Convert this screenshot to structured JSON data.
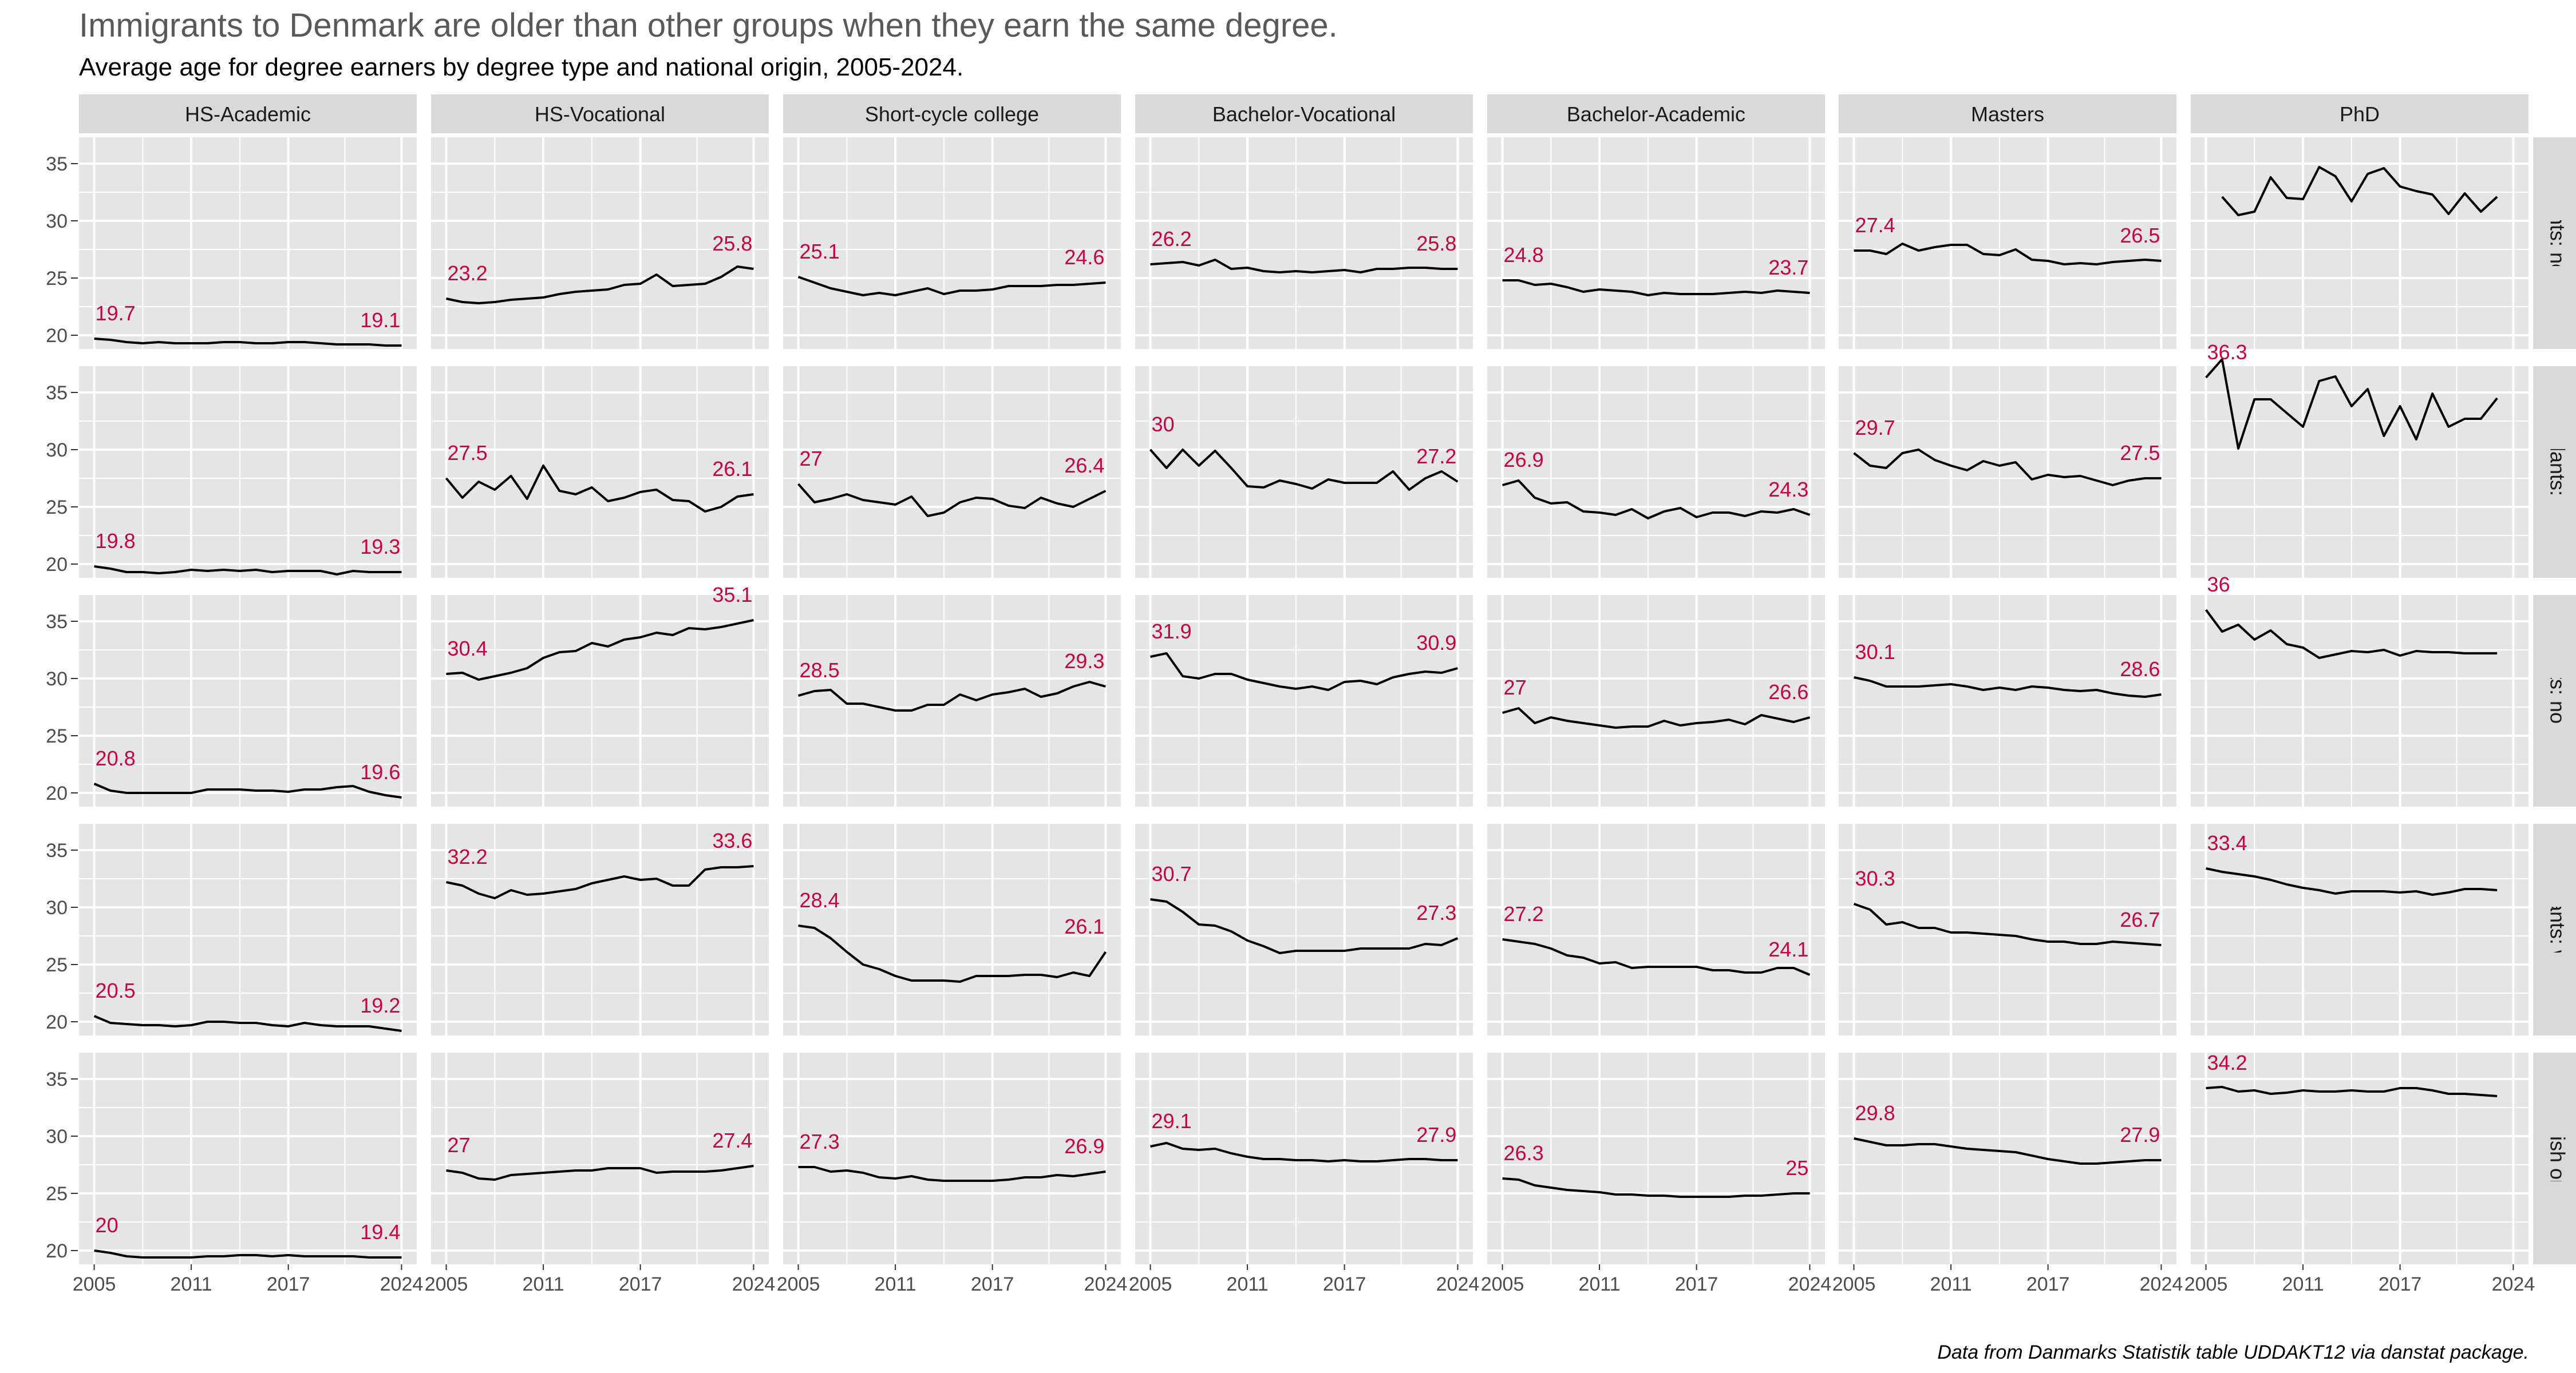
{
  "title": "Immigrants to Denmark are older than other groups when they earn the same degree.",
  "subtitle": "Average age for degree earners by degree type and national origin, 2005-2024.",
  "caption": "Data from Danmarks Statistik table UDDAKT12 via danstat package.",
  "colors": {
    "panel_bg": "#e5e5e5",
    "grid": "#ffffff",
    "strip_bg": "#d9d9d9",
    "line": "#000000",
    "label": "#c5003e",
    "title": "#595959",
    "text": "#000000",
    "axis_text": "#4d4d4d"
  },
  "chart_data": {
    "type": "line",
    "facet_columns": [
      "HS-Academic",
      "HS-Vocational",
      "Short-cycle college",
      "Bachelor-Vocational",
      "Bachelor-Academic",
      "Masters",
      "PhD"
    ],
    "facet_rows": [
      "Descendants: non-western",
      "Descendants: western",
      "Immigrants: non-western",
      "Immigrants: western",
      "Danish origin"
    ],
    "x": [
      2005,
      2006,
      2007,
      2008,
      2009,
      2010,
      2011,
      2012,
      2013,
      2014,
      2015,
      2016,
      2017,
      2018,
      2019,
      2020,
      2021,
      2022,
      2023,
      2024
    ],
    "xticks": [
      2005,
      2011,
      2017,
      2024
    ],
    "yticks": [
      20,
      25,
      30,
      35
    ],
    "xlim": [
      2005,
      2024
    ],
    "ylim": [
      18.8,
      37.3
    ],
    "grid": true,
    "series": [
      [
        {
          "values": [
            19.7,
            19.6,
            19.4,
            19.3,
            19.4,
            19.3,
            19.3,
            19.3,
            19.4,
            19.4,
            19.3,
            19.3,
            19.4,
            19.4,
            19.3,
            19.2,
            19.2,
            19.2,
            19.1,
            19.1
          ],
          "start_label": "19.7",
          "end_label": "19.1"
        },
        {
          "values": [
            23.2,
            22.9,
            22.8,
            22.9,
            23.1,
            23.2,
            23.3,
            23.6,
            23.8,
            23.9,
            24.0,
            24.4,
            24.5,
            25.3,
            24.3,
            24.4,
            24.5,
            25.1,
            26.0,
            25.8
          ],
          "start_label": "23.2",
          "end_label": "25.8"
        },
        {
          "values": [
            25.1,
            24.6,
            24.1,
            23.8,
            23.5,
            23.7,
            23.5,
            23.8,
            24.1,
            23.6,
            23.9,
            23.9,
            24.0,
            24.3,
            24.3,
            24.3,
            24.4,
            24.4,
            24.5,
            24.6
          ],
          "start_label": "25.1",
          "end_label": "24.6"
        },
        {
          "values": [
            26.2,
            26.3,
            26.4,
            26.1,
            26.6,
            25.8,
            25.9,
            25.6,
            25.5,
            25.6,
            25.5,
            25.6,
            25.7,
            25.5,
            25.8,
            25.8,
            25.9,
            25.9,
            25.8,
            25.8
          ],
          "start_label": "26.2",
          "end_label": "25.8"
        },
        {
          "values": [
            24.8,
            24.8,
            24.4,
            24.5,
            24.2,
            23.8,
            24.0,
            23.9,
            23.8,
            23.5,
            23.7,
            23.6,
            23.6,
            23.6,
            23.7,
            23.8,
            23.7,
            23.9,
            23.8,
            23.7
          ],
          "start_label": "24.8",
          "end_label": "23.7"
        },
        {
          "values": [
            27.4,
            27.4,
            27.1,
            28.0,
            27.4,
            27.7,
            27.9,
            27.9,
            27.1,
            27.0,
            27.5,
            26.6,
            26.5,
            26.2,
            26.3,
            26.2,
            26.4,
            26.5,
            26.6,
            26.5
          ],
          "start_label": "27.4",
          "end_label": "26.5"
        },
        {
          "values": [
            null,
            32.1,
            30.5,
            30.8,
            33.8,
            32.0,
            31.9,
            34.7,
            33.9,
            31.7,
            34.1,
            34.6,
            33.0,
            32.6,
            32.3,
            30.6,
            32.4,
            30.8,
            32.1,
            null
          ],
          "start_label": "",
          "end_label": ""
        }
      ],
      [
        {
          "values": [
            19.8,
            19.6,
            19.3,
            19.3,
            19.2,
            19.3,
            19.5,
            19.4,
            19.5,
            19.4,
            19.5,
            19.3,
            19.4,
            19.4,
            19.4,
            19.1,
            19.4,
            19.3,
            19.3,
            19.3
          ],
          "start_label": "19.8",
          "end_label": "19.3"
        },
        {
          "values": [
            27.5,
            25.8,
            27.2,
            26.5,
            27.7,
            25.7,
            28.6,
            26.4,
            26.1,
            26.7,
            25.5,
            25.8,
            26.3,
            26.5,
            25.6,
            25.5,
            24.6,
            25.0,
            25.9,
            26.1
          ],
          "start_label": "27.5",
          "end_label": "26.1"
        },
        {
          "values": [
            27.0,
            25.4,
            25.7,
            26.1,
            25.6,
            25.4,
            25.2,
            25.9,
            24.2,
            24.5,
            25.4,
            25.8,
            25.7,
            25.1,
            24.9,
            25.8,
            25.3,
            25.0,
            25.7,
            26.4
          ],
          "start_label": "27",
          "end_label": "26.4"
        },
        {
          "values": [
            30.0,
            28.4,
            30.0,
            28.6,
            29.9,
            28.4,
            26.8,
            26.7,
            27.3,
            27.0,
            26.6,
            27.4,
            27.1,
            27.1,
            27.1,
            28.1,
            26.5,
            27.5,
            28.1,
            27.2
          ],
          "start_label": "30",
          "end_label": "27.2"
        },
        {
          "values": [
            26.9,
            27.3,
            25.8,
            25.3,
            25.4,
            24.6,
            24.5,
            24.3,
            24.8,
            24.0,
            24.6,
            24.9,
            24.1,
            24.5,
            24.5,
            24.2,
            24.6,
            24.5,
            24.8,
            24.3
          ],
          "start_label": "26.9",
          "end_label": "24.3"
        },
        {
          "values": [
            29.7,
            28.6,
            28.4,
            29.7,
            30.0,
            29.1,
            28.6,
            28.2,
            29.0,
            28.6,
            28.9,
            27.4,
            27.8,
            27.6,
            27.7,
            27.3,
            26.9,
            27.3,
            27.5,
            27.5
          ],
          "start_label": "29.7",
          "end_label": "27.5"
        },
        {
          "values": [
            36.3,
            37.9,
            30.1,
            34.4,
            34.4,
            33.2,
            32.0,
            36.0,
            36.4,
            33.8,
            35.3,
            31.2,
            33.8,
            30.9,
            34.9,
            32.0,
            32.7,
            32.7,
            34.5,
            null
          ],
          "start_label": "36.3",
          "end_label": ""
        }
      ],
      [
        {
          "values": [
            20.8,
            20.2,
            20.0,
            20.0,
            20.0,
            20.0,
            20.0,
            20.3,
            20.3,
            20.3,
            20.2,
            20.2,
            20.1,
            20.3,
            20.3,
            20.5,
            20.6,
            20.1,
            19.8,
            19.6
          ],
          "start_label": "20.8",
          "end_label": "19.6"
        },
        {
          "values": [
            30.4,
            30.5,
            29.9,
            30.2,
            30.5,
            30.9,
            31.8,
            32.3,
            32.4,
            33.1,
            32.8,
            33.4,
            33.6,
            34.0,
            33.8,
            34.4,
            34.3,
            34.5,
            34.8,
            35.1
          ],
          "start_label": "30.4",
          "end_label": "35.1"
        },
        {
          "values": [
            28.5,
            28.9,
            29.0,
            27.8,
            27.8,
            27.5,
            27.2,
            27.2,
            27.7,
            27.7,
            28.6,
            28.1,
            28.6,
            28.8,
            29.1,
            28.4,
            28.7,
            29.3,
            29.7,
            29.3
          ],
          "start_label": "28.5",
          "end_label": "29.3"
        },
        {
          "values": [
            31.9,
            32.2,
            30.2,
            30.0,
            30.4,
            30.4,
            29.9,
            29.6,
            29.3,
            29.1,
            29.3,
            29.0,
            29.7,
            29.8,
            29.5,
            30.1,
            30.4,
            30.6,
            30.5,
            30.9
          ],
          "start_label": "31.9",
          "end_label": "30.9"
        },
        {
          "values": [
            27.0,
            27.4,
            26.1,
            26.6,
            26.3,
            26.1,
            25.9,
            25.7,
            25.8,
            25.8,
            26.3,
            25.9,
            26.1,
            26.2,
            26.4,
            26.0,
            26.8,
            26.5,
            26.2,
            26.6
          ],
          "start_label": "27",
          "end_label": "26.6"
        },
        {
          "values": [
            30.1,
            29.8,
            29.3,
            29.3,
            29.3,
            29.4,
            29.5,
            29.3,
            29.0,
            29.2,
            29.0,
            29.3,
            29.2,
            29.0,
            28.9,
            29.0,
            28.7,
            28.5,
            28.4,
            28.6
          ],
          "start_label": "30.1",
          "end_label": "28.6"
        },
        {
          "values": [
            36.0,
            34.1,
            34.7,
            33.4,
            34.2,
            33.0,
            32.7,
            31.8,
            32.1,
            32.4,
            32.3,
            32.5,
            32.0,
            32.4,
            32.3,
            32.3,
            32.2,
            32.2,
            32.2,
            null
          ],
          "start_label": "36",
          "end_label": ""
        }
      ],
      [
        {
          "values": [
            20.5,
            19.9,
            19.8,
            19.7,
            19.7,
            19.6,
            19.7,
            20.0,
            20.0,
            19.9,
            19.9,
            19.7,
            19.6,
            19.9,
            19.7,
            19.6,
            19.6,
            19.6,
            19.4,
            19.2
          ],
          "start_label": "20.5",
          "end_label": "19.2"
        },
        {
          "values": [
            32.2,
            31.9,
            31.2,
            30.8,
            31.5,
            31.1,
            31.2,
            31.4,
            31.6,
            32.1,
            32.4,
            32.7,
            32.4,
            32.5,
            31.9,
            31.9,
            33.3,
            33.5,
            33.5,
            33.6
          ],
          "start_label": "32.2",
          "end_label": "33.6"
        },
        {
          "values": [
            28.4,
            28.2,
            27.3,
            26.1,
            25.0,
            24.6,
            24.0,
            23.6,
            23.6,
            23.6,
            23.5,
            24.0,
            24.0,
            24.0,
            24.1,
            24.1,
            23.9,
            24.3,
            24.0,
            26.1
          ],
          "start_label": "28.4",
          "end_label": "26.1"
        },
        {
          "values": [
            30.7,
            30.5,
            29.6,
            28.5,
            28.4,
            27.9,
            27.1,
            26.6,
            26.0,
            26.2,
            26.2,
            26.2,
            26.2,
            26.4,
            26.4,
            26.4,
            26.4,
            26.8,
            26.7,
            27.3
          ],
          "start_label": "30.7",
          "end_label": "27.3"
        },
        {
          "values": [
            27.2,
            27.0,
            26.8,
            26.4,
            25.8,
            25.6,
            25.1,
            25.2,
            24.7,
            24.8,
            24.8,
            24.8,
            24.8,
            24.5,
            24.5,
            24.3,
            24.3,
            24.7,
            24.7,
            24.1
          ],
          "start_label": "27.2",
          "end_label": "24.1"
        },
        {
          "values": [
            30.3,
            29.8,
            28.5,
            28.7,
            28.2,
            28.2,
            27.8,
            27.8,
            27.7,
            27.6,
            27.5,
            27.2,
            27.0,
            27.0,
            26.8,
            26.8,
            27.0,
            26.9,
            26.8,
            26.7
          ],
          "start_label": "30.3",
          "end_label": "26.7"
        },
        {
          "values": [
            33.4,
            33.1,
            32.9,
            32.7,
            32.4,
            32.0,
            31.7,
            31.5,
            31.2,
            31.4,
            31.4,
            31.4,
            31.3,
            31.4,
            31.1,
            31.3,
            31.6,
            31.6,
            31.5,
            null
          ],
          "start_label": "33.4",
          "end_label": ""
        }
      ],
      [
        {
          "values": [
            20.0,
            19.8,
            19.5,
            19.4,
            19.4,
            19.4,
            19.4,
            19.5,
            19.5,
            19.6,
            19.6,
            19.5,
            19.6,
            19.5,
            19.5,
            19.5,
            19.5,
            19.4,
            19.4,
            19.4
          ],
          "start_label": "20",
          "end_label": "19.4"
        },
        {
          "values": [
            27.0,
            26.8,
            26.3,
            26.2,
            26.6,
            26.7,
            26.8,
            26.9,
            27.0,
            27.0,
            27.2,
            27.2,
            27.2,
            26.8,
            26.9,
            26.9,
            26.9,
            27.0,
            27.2,
            27.4
          ],
          "start_label": "27",
          "end_label": "27.4"
        },
        {
          "values": [
            27.3,
            27.3,
            26.9,
            27.0,
            26.8,
            26.4,
            26.3,
            26.5,
            26.2,
            26.1,
            26.1,
            26.1,
            26.1,
            26.2,
            26.4,
            26.4,
            26.6,
            26.5,
            26.7,
            26.9
          ],
          "start_label": "27.3",
          "end_label": "26.9"
        },
        {
          "values": [
            29.1,
            29.4,
            28.9,
            28.8,
            28.9,
            28.5,
            28.2,
            28.0,
            28.0,
            27.9,
            27.9,
            27.8,
            27.9,
            27.8,
            27.8,
            27.9,
            28.0,
            28.0,
            27.9,
            27.9
          ],
          "start_label": "29.1",
          "end_label": "27.9"
        },
        {
          "values": [
            26.3,
            26.2,
            25.7,
            25.5,
            25.3,
            25.2,
            25.1,
            24.9,
            24.9,
            24.8,
            24.8,
            24.7,
            24.7,
            24.7,
            24.7,
            24.8,
            24.8,
            24.9,
            25.0,
            25.0
          ],
          "start_label": "26.3",
          "end_label": "25"
        },
        {
          "values": [
            29.8,
            29.5,
            29.2,
            29.2,
            29.3,
            29.3,
            29.1,
            28.9,
            28.8,
            28.7,
            28.6,
            28.3,
            28.0,
            27.8,
            27.6,
            27.6,
            27.7,
            27.8,
            27.9,
            27.9
          ],
          "start_label": "29.8",
          "end_label": "27.9"
        },
        {
          "values": [
            34.2,
            34.3,
            33.9,
            34.0,
            33.7,
            33.8,
            34.0,
            33.9,
            33.9,
            34.0,
            33.9,
            33.9,
            34.2,
            34.2,
            34.0,
            33.7,
            33.7,
            33.6,
            33.5,
            null
          ],
          "start_label": "34.2",
          "end_label": ""
        }
      ]
    ]
  }
}
